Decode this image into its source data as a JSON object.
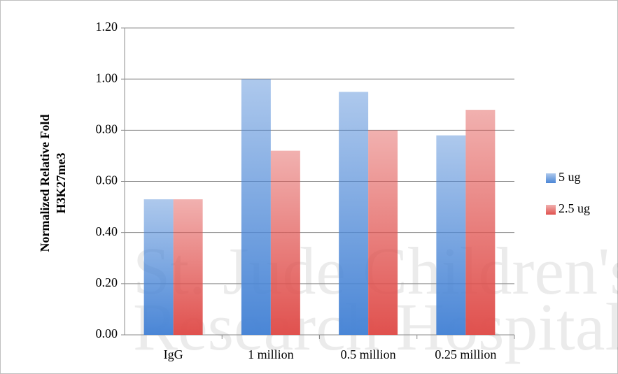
{
  "chart_data": {
    "type": "bar",
    "watermark": [
      "St. Jude Children's",
      "Research Hospital"
    ],
    "y_label": [
      "Normalized Relative Fold",
      "H3K27me3"
    ],
    "categories": [
      "IgG",
      "1 million",
      "0.5 million",
      "0.25 million"
    ],
    "series": [
      {
        "name": "5 ug",
        "color": "#4a86d6",
        "values": [
          0.53,
          1.0,
          0.95,
          0.78
        ]
      },
      {
        "name": "2.5 ug",
        "color": "#e0514e",
        "values": [
          0.53,
          0.72,
          0.8,
          0.88
        ]
      }
    ],
    "ylim": [
      0,
      1.2
    ],
    "yticks": [
      {
        "value": 0,
        "label": "0.00"
      },
      {
        "value": 0.2,
        "label": "0.20"
      },
      {
        "value": 0.4,
        "label": "0.40"
      },
      {
        "value": 0.6,
        "label": "0.60"
      },
      {
        "value": 0.8,
        "label": "0.80"
      },
      {
        "value": 1.0,
        "label": "1.00"
      },
      {
        "value": 1.2,
        "label": "1.20"
      }
    ],
    "grid": true,
    "legend": "right"
  }
}
